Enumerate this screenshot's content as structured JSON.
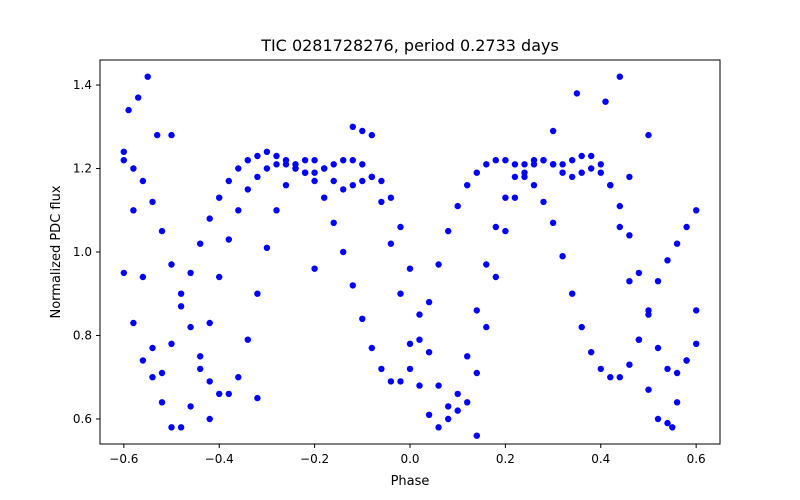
{
  "chart_data": {
    "type": "scatter",
    "title": "TIC 0281728276, period 0.2733 days",
    "xlabel": "Phase",
    "ylabel": "Normalized PDC flux",
    "xlim": [
      -0.65,
      0.65
    ],
    "ylim": [
      0.54,
      1.46
    ],
    "xticks": [
      -0.6,
      -0.4,
      -0.2,
      0.0,
      0.2,
      0.4,
      0.6
    ],
    "xtick_labels": [
      "−0.6",
      "−0.4",
      "−0.2",
      "0.0",
      "0.2",
      "0.4",
      "0.6"
    ],
    "yticks": [
      0.6,
      0.8,
      1.0,
      1.2,
      1.4
    ],
    "ytick_labels": [
      "0.6",
      "0.8",
      "1.0",
      "1.2",
      "1.4"
    ],
    "grid": false,
    "marker_color": "#0000ff",
    "series": [
      {
        "points": [
          [
            -0.6,
            1.24
          ],
          [
            -0.58,
            1.2
          ],
          [
            -0.56,
            1.17
          ],
          [
            -0.54,
            1.12
          ],
          [
            -0.52,
            1.05
          ],
          [
            -0.5,
            0.97
          ],
          [
            -0.48,
            0.9
          ],
          [
            -0.46,
            0.82
          ],
          [
            -0.44,
            0.75
          ],
          [
            -0.42,
            0.69
          ],
          [
            -0.4,
            0.66
          ],
          [
            -0.38,
            0.66
          ],
          [
            -0.36,
            0.7
          ],
          [
            -0.34,
            0.79
          ],
          [
            -0.32,
            0.9
          ],
          [
            -0.3,
            1.01
          ],
          [
            -0.28,
            1.1
          ],
          [
            -0.26,
            1.16
          ],
          [
            -0.24,
            1.2
          ],
          [
            -0.22,
            1.22
          ],
          [
            -0.2,
            1.22
          ],
          [
            -0.18,
            1.2
          ],
          [
            -0.16,
            1.17
          ],
          [
            -0.14,
            1.15
          ],
          [
            -0.12,
            1.16
          ],
          [
            -0.1,
            1.17
          ],
          [
            -0.08,
            1.18
          ],
          [
            -0.06,
            1.17
          ],
          [
            -0.04,
            1.13
          ],
          [
            -0.02,
            1.06
          ],
          [
            0.0,
            0.96
          ],
          [
            0.02,
            0.85
          ],
          [
            0.04,
            0.76
          ],
          [
            0.06,
            0.68
          ],
          [
            0.08,
            0.63
          ],
          [
            0.1,
            0.62
          ],
          [
            0.12,
            0.64
          ],
          [
            0.14,
            0.71
          ],
          [
            0.16,
            0.82
          ],
          [
            0.18,
            0.94
          ],
          [
            0.2,
            1.05
          ],
          [
            0.22,
            1.13
          ],
          [
            0.24,
            1.18
          ],
          [
            0.26,
            1.21
          ],
          [
            0.28,
            1.22
          ],
          [
            0.3,
            1.21
          ],
          [
            0.32,
            1.19
          ],
          [
            0.34,
            1.18
          ],
          [
            0.36,
            1.19
          ],
          [
            0.38,
            1.2
          ],
          [
            0.4,
            1.19
          ],
          [
            0.42,
            1.16
          ],
          [
            0.44,
            1.11
          ],
          [
            0.46,
            1.04
          ],
          [
            0.48,
            0.95
          ],
          [
            0.5,
            0.85
          ],
          [
            0.52,
            0.77
          ],
          [
            0.54,
            0.72
          ],
          [
            0.56,
            0.71
          ],
          [
            0.58,
            0.74
          ],
          [
            0.6,
            0.78
          ],
          [
            -0.6,
            0.95
          ],
          [
            -0.58,
            0.83
          ],
          [
            -0.56,
            0.74
          ],
          [
            -0.54,
            0.7
          ],
          [
            -0.52,
            0.71
          ],
          [
            -0.5,
            0.78
          ],
          [
            -0.48,
            0.87
          ],
          [
            -0.46,
            0.95
          ],
          [
            -0.44,
            1.02
          ],
          [
            -0.42,
            1.08
          ],
          [
            -0.4,
            1.13
          ],
          [
            -0.38,
            1.17
          ],
          [
            -0.36,
            1.2
          ],
          [
            -0.34,
            1.22
          ],
          [
            -0.32,
            1.23
          ],
          [
            -0.3,
            1.24
          ],
          [
            -0.28,
            1.23
          ],
          [
            -0.26,
            1.22
          ],
          [
            -0.24,
            1.21
          ],
          [
            -0.22,
            1.19
          ],
          [
            -0.2,
            1.17
          ],
          [
            -0.18,
            1.13
          ],
          [
            -0.16,
            1.07
          ],
          [
            -0.14,
            1.0
          ],
          [
            -0.12,
            0.92
          ],
          [
            -0.1,
            0.84
          ],
          [
            -0.08,
            0.77
          ],
          [
            -0.06,
            0.72
          ],
          [
            -0.04,
            0.69
          ],
          [
            -0.02,
            0.69
          ],
          [
            0.0,
            0.72
          ],
          [
            0.02,
            0.79
          ],
          [
            0.04,
            0.88
          ],
          [
            0.06,
            0.97
          ],
          [
            0.08,
            1.05
          ],
          [
            0.1,
            1.11
          ],
          [
            0.12,
            1.16
          ],
          [
            0.14,
            1.19
          ],
          [
            0.16,
            1.21
          ],
          [
            0.18,
            1.22
          ],
          [
            0.2,
            1.22
          ],
          [
            0.22,
            1.21
          ],
          [
            0.24,
            1.19
          ],
          [
            0.26,
            1.16
          ],
          [
            0.28,
            1.12
          ],
          [
            0.3,
            1.07
          ],
          [
            0.32,
            0.99
          ],
          [
            0.34,
            0.9
          ],
          [
            0.36,
            0.82
          ],
          [
            0.38,
            0.76
          ],
          [
            0.4,
            0.72
          ],
          [
            0.42,
            0.7
          ],
          [
            0.44,
            0.7
          ],
          [
            0.46,
            0.73
          ],
          [
            0.48,
            0.79
          ],
          [
            0.5,
            0.86
          ],
          [
            0.52,
            0.93
          ],
          [
            0.54,
            0.98
          ],
          [
            0.56,
            1.02
          ],
          [
            0.58,
            1.06
          ],
          [
            0.6,
            1.1
          ],
          [
            -0.6,
            1.22
          ],
          [
            -0.58,
            1.1
          ],
          [
            -0.56,
            0.94
          ],
          [
            -0.54,
            0.77
          ],
          [
            -0.52,
            0.64
          ],
          [
            -0.5,
            0.58
          ],
          [
            -0.48,
            0.58
          ],
          [
            -0.46,
            0.63
          ],
          [
            -0.44,
            0.72
          ],
          [
            -0.42,
            0.83
          ],
          [
            -0.4,
            0.94
          ],
          [
            -0.38,
            1.03
          ],
          [
            -0.36,
            1.1
          ],
          [
            -0.34,
            1.15
          ],
          [
            -0.32,
            1.18
          ],
          [
            -0.3,
            1.2
          ],
          [
            -0.28,
            1.21
          ],
          [
            -0.26,
            1.21
          ],
          [
            -0.24,
            1.2
          ],
          [
            -0.22,
            1.19
          ],
          [
            -0.2,
            1.19
          ],
          [
            -0.18,
            1.2
          ],
          [
            -0.16,
            1.21
          ],
          [
            -0.14,
            1.22
          ],
          [
            -0.12,
            1.22
          ],
          [
            -0.1,
            1.21
          ],
          [
            -0.08,
            1.18
          ],
          [
            -0.06,
            1.12
          ],
          [
            -0.04,
            1.02
          ],
          [
            -0.02,
            0.9
          ],
          [
            0.0,
            0.78
          ],
          [
            0.02,
            0.68
          ],
          [
            0.04,
            0.61
          ],
          [
            0.06,
            0.58
          ],
          [
            0.08,
            0.6
          ],
          [
            0.1,
            0.66
          ],
          [
            0.12,
            0.75
          ],
          [
            0.14,
            0.86
          ],
          [
            0.16,
            0.97
          ],
          [
            0.18,
            1.06
          ],
          [
            0.2,
            1.13
          ],
          [
            0.22,
            1.18
          ],
          [
            0.24,
            1.21
          ],
          [
            0.26,
            1.22
          ],
          [
            0.28,
            1.22
          ],
          [
            0.3,
            1.21
          ],
          [
            0.32,
            1.21
          ],
          [
            0.34,
            1.22
          ],
          [
            0.36,
            1.23
          ],
          [
            0.38,
            1.23
          ],
          [
            0.4,
            1.21
          ],
          [
            0.42,
            1.16
          ],
          [
            0.44,
            1.06
          ],
          [
            0.46,
            0.93
          ],
          [
            0.48,
            0.79
          ],
          [
            0.5,
            0.67
          ],
          [
            0.52,
            0.6
          ],
          [
            0.54,
            0.59
          ],
          [
            0.56,
            0.64
          ],
          [
            0.58,
            0.74
          ],
          [
            0.6,
            0.86
          ],
          [
            -0.59,
            1.34
          ],
          [
            -0.57,
            1.37
          ],
          [
            -0.55,
            1.42
          ],
          [
            -0.53,
            1.28
          ],
          [
            -0.5,
            1.28
          ],
          [
            -0.12,
            1.3
          ],
          [
            -0.1,
            1.29
          ],
          [
            -0.08,
            1.28
          ],
          [
            0.3,
            1.29
          ],
          [
            0.35,
            1.38
          ],
          [
            0.41,
            1.36
          ],
          [
            0.44,
            1.42
          ],
          [
            0.5,
            1.28
          ],
          [
            -0.42,
            0.6
          ],
          [
            0.14,
            0.56
          ],
          [
            -0.2,
            0.96
          ],
          [
            -0.32,
            0.65
          ],
          [
            0.46,
            1.18
          ],
          [
            0.55,
            0.58
          ]
        ]
      }
    ]
  }
}
